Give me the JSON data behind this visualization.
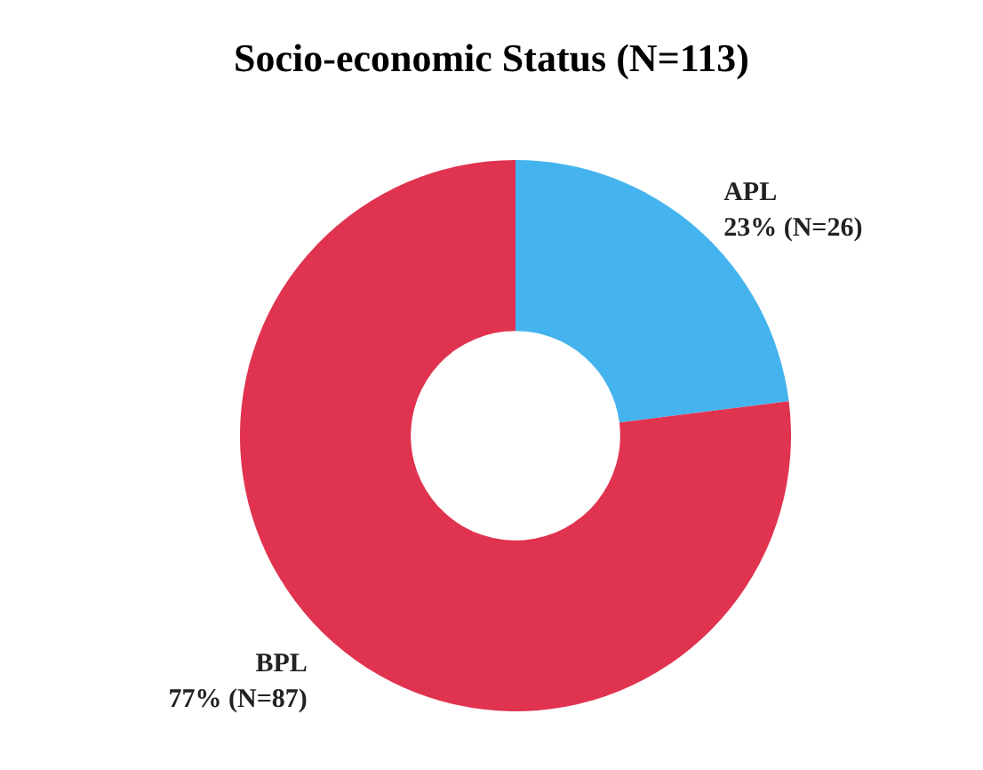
{
  "chart_data": {
    "type": "donut",
    "title": "Socio-economic Status (N=113)",
    "categories": [
      "APL",
      "BPL"
    ],
    "values": [
      26,
      87
    ],
    "colors": [
      "#45b4ee",
      "#e0334f"
    ],
    "value_labels": [
      "23% (N=26)",
      "77% (N=87)"
    ]
  }
}
